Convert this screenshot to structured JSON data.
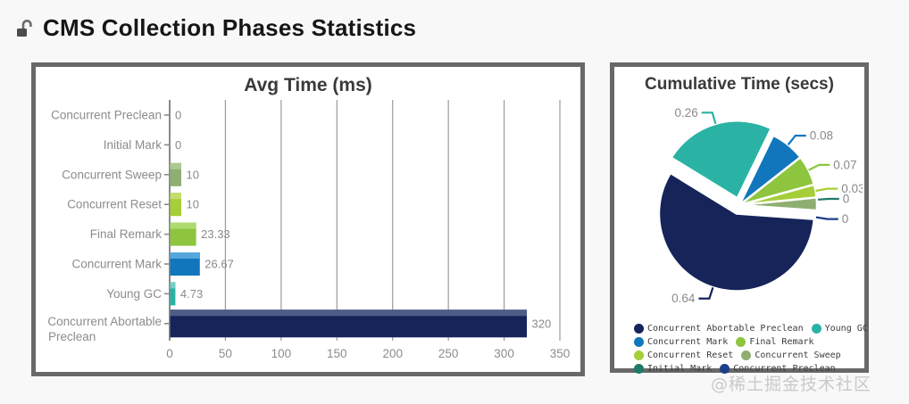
{
  "page": {
    "background": "#f8f8f9",
    "watermark": "@稀土掘金技术社区"
  },
  "header": {
    "title": "CMS Collection Phases Statistics",
    "icon": "unlock-icon"
  },
  "chart_data": [
    {
      "type": "bar",
      "title": "Avg Time (ms)",
      "orientation": "horizontal",
      "categories": [
        "Concurrent Preclean",
        "Initial Mark",
        "Concurrent Sweep",
        "Concurrent Reset",
        "Final Remark",
        "Concurrent Mark",
        "Young GC",
        "Concurrent Abortable Preclean"
      ],
      "values": [
        0,
        0,
        10,
        10,
        23.33,
        26.67,
        4.73,
        320
      ],
      "value_labels": [
        "0",
        "0",
        "10",
        "10",
        "23.33",
        "26.67",
        "4.73",
        "320"
      ],
      "bar_colors": [
        "#1D4080",
        "#1E7A68",
        "#8FAE72",
        "#A6CE39",
        "#8DC53F",
        "#1176BC",
        "#2AB3A4",
        "#16245A"
      ],
      "bar_colors_light": [
        "#4E6AA6",
        "#4E9E8E",
        "#ADC890",
        "#C3DE6E",
        "#AFDA70",
        "#55A6DB",
        "#72CFC4",
        "#4E5D87"
      ],
      "xlabel": "",
      "ylabel": "",
      "xlim": [
        0,
        350
      ],
      "xticks": [
        0,
        50,
        100,
        150,
        200,
        250,
        300,
        350
      ],
      "grid": true
    },
    {
      "type": "pie",
      "title": "Cumulative Time (secs)",
      "slices": [
        {
          "name": "Concurrent Preclean",
          "value": 0,
          "label": "0",
          "color": "#1C3F87",
          "explode": 0,
          "label_angle_deg": -9
        },
        {
          "name": "Initial Mark",
          "value": 0,
          "label": "0",
          "color": "#1E7A68",
          "explode": 0,
          "label_angle_deg": 4
        },
        {
          "name": "Concurrent Sweep",
          "value": 0.03,
          "label": null,
          "color": "#8FAE72",
          "explode": 0
        },
        {
          "name": "Concurrent Reset",
          "value": 0.03,
          "label": "0.03",
          "color": "#A6CE39",
          "explode": 0
        },
        {
          "name": "Final Remark",
          "value": 0.07,
          "label": "0.07",
          "color": "#8DC53F",
          "explode": 0
        },
        {
          "name": "Concurrent Mark",
          "value": 0.08,
          "label": "0.08",
          "color": "#1176BC",
          "explode": 0
        },
        {
          "name": "Young GC",
          "value": 0.26,
          "label": "0.26",
          "color": "#2AB3A4",
          "explode": 8
        },
        {
          "name": "Concurrent Abortable Preclean",
          "value": 0.64,
          "label": "0.64",
          "color": "#16245A",
          "explode": 10
        }
      ],
      "legend": [
        {
          "label": "Concurrent Abortable Preclean",
          "color": "#16245A"
        },
        {
          "label": "Young GC",
          "color": "#2AB3A4"
        },
        {
          "label": "Concurrent Mark",
          "color": "#1176BC"
        },
        {
          "label": "Final Remark",
          "color": "#8DC53F"
        },
        {
          "label": "Concurrent Reset",
          "color": "#A6CE39"
        },
        {
          "label": "Concurrent Sweep",
          "color": "#8FAE72"
        },
        {
          "label": "Initial Mark",
          "color": "#1E7A68"
        },
        {
          "label": "Concurrent Preclean",
          "color": "#1C3F87"
        }
      ],
      "legend_position": "bottom"
    }
  ]
}
